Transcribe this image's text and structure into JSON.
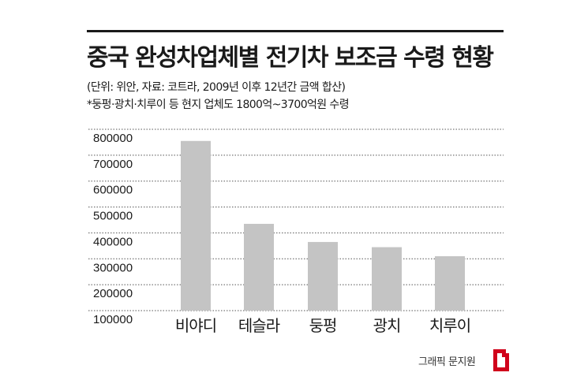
{
  "header": {
    "title": "중국 완성차업체별 전기차 보조금 수령 현황",
    "subtitle": "(단위: 위안, 자료: 코트라, 2009년 이후 12년간 금액 합산)",
    "note": "*둥펑·광치·치루이 등 현지 업체도 1800억~3700억원 수령"
  },
  "chart_data": {
    "type": "bar",
    "categories": [
      "비야디",
      "테슬라",
      "둥펑",
      "광치",
      "치루이"
    ],
    "values": [
      755000,
      435000,
      365000,
      345000,
      310000
    ],
    "ylim": [
      100000,
      800000
    ],
    "yticks": [
      "800000",
      "700000",
      "600000",
      "500000",
      "400000",
      "300000",
      "200000",
      "100000"
    ],
    "grid": true,
    "bar_color": "#c4c4c4",
    "grid_color": "#555555"
  },
  "footer": {
    "credit": "그래픽 문지원",
    "logo_color": "#d0021b"
  }
}
